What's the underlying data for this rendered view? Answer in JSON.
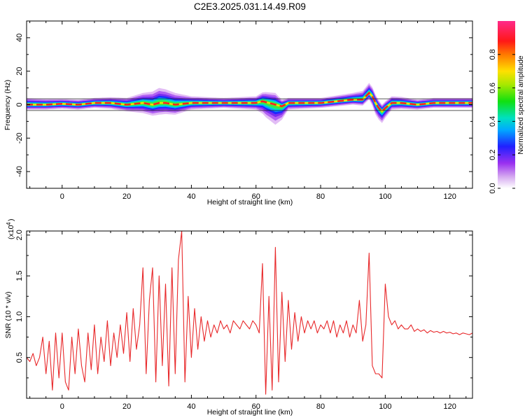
{
  "title": "C2E3.2025.031.14.49.R09",
  "chart_data": [
    {
      "type": "heatmap",
      "xlabel": "Height of straight line (km)",
      "ylabel": "Frequency (Hz)",
      "xlim": [
        -11,
        127
      ],
      "ylim": [
        -50,
        50
      ],
      "xticks": [
        0,
        20,
        40,
        60,
        80,
        100,
        120
      ],
      "xtick_labels": [
        "0",
        "20",
        "40",
        "60",
        "80",
        "100",
        "120"
      ],
      "yticks": [
        -40,
        -20,
        0,
        20,
        40
      ],
      "ytick_labels": [
        "-40",
        "-20",
        "0",
        "20",
        "40"
      ],
      "colorbar": {
        "label": "Normalized spectral amplitude",
        "range": [
          0,
          1
        ],
        "ticks": [
          0.0,
          0.2,
          0.4,
          0.6,
          0.8
        ],
        "tick_labels": [
          "0.0",
          "0.2",
          "0.4",
          "0.6",
          "0.8"
        ]
      },
      "ridge": {
        "x": [
          -11,
          -5,
          0,
          5,
          10,
          15,
          20,
          25,
          28,
          30,
          32,
          35,
          40,
          45,
          50,
          55,
          60,
          62,
          64,
          66,
          68,
          70,
          75,
          80,
          85,
          90,
          93,
          95,
          96,
          97,
          98,
          99,
          100,
          102,
          105,
          110,
          115,
          120,
          127
        ],
        "y": [
          0,
          0,
          0.5,
          0,
          1,
          1,
          0,
          1,
          0,
          1,
          1,
          0,
          1,
          1,
          1,
          1,
          1,
          2,
          1,
          0,
          -1,
          1,
          1,
          1,
          2,
          3,
          3,
          7,
          5,
          1,
          -2,
          -4,
          -2,
          1,
          1,
          0,
          1,
          1,
          1
        ]
      },
      "spread_hz": {
        "x": [
          -11,
          0,
          10,
          20,
          25,
          30,
          35,
          40,
          50,
          60,
          63,
          66,
          68,
          70,
          80,
          90,
          95,
          97,
          99,
          102,
          110,
          127
        ],
        "up": [
          4,
          3,
          3,
          4,
          6,
          9,
          7,
          4,
          3,
          4,
          6,
          7,
          4,
          3,
          3,
          4,
          6,
          5,
          4,
          4,
          3,
          3
        ],
        "down": [
          3,
          3,
          3,
          4,
          6,
          7,
          6,
          4,
          3,
          4,
          9,
          12,
          8,
          4,
          3,
          3,
          4,
          7,
          7,
          4,
          3,
          3
        ]
      }
    },
    {
      "type": "line",
      "xlabel": "Height of straight line (km)",
      "ylabel": "SNR (10 * v/v)",
      "scale_label": "(x10",
      "scale_exponent": "4",
      "xlim": [
        -11,
        127
      ],
      "ylim": [
        0,
        2.05
      ],
      "xticks": [
        0,
        20,
        40,
        60,
        80,
        100,
        120
      ],
      "xtick_labels": [
        "0",
        "20",
        "40",
        "60",
        "80",
        "100",
        "120"
      ],
      "yticks": [
        0.5,
        1.0,
        1.5,
        2.0
      ],
      "ytick_labels": [
        "0.5",
        "1.0",
        "1.5",
        "2.0"
      ],
      "color": "#e8282a",
      "x": [
        -11,
        -10,
        -9,
        -8,
        -7,
        -6,
        -5,
        -4,
        -3,
        -2,
        -1,
        0,
        1,
        2,
        3,
        4,
        5,
        6,
        7,
        8,
        9,
        10,
        11,
        12,
        13,
        14,
        15,
        16,
        17,
        18,
        19,
        20,
        21,
        22,
        23,
        24,
        25,
        26,
        27,
        28,
        29,
        30,
        31,
        32,
        33,
        34,
        35,
        36,
        37,
        38,
        39,
        40,
        41,
        42,
        43,
        44,
        45,
        46,
        47,
        48,
        49,
        50,
        51,
        52,
        53,
        54,
        55,
        56,
        57,
        58,
        59,
        60,
        61,
        62,
        63,
        64,
        65,
        66,
        67,
        68,
        69,
        70,
        71,
        72,
        73,
        74,
        75,
        76,
        77,
        78,
        79,
        80,
        81,
        82,
        83,
        84,
        85,
        86,
        87,
        88,
        89,
        90,
        91,
        92,
        93,
        94,
        95,
        96,
        97,
        98,
        99,
        100,
        101,
        102,
        103,
        104,
        105,
        106,
        107,
        108,
        109,
        110,
        111,
        112,
        113,
        114,
        115,
        116,
        117,
        118,
        119,
        120,
        121,
        122,
        123,
        124,
        125,
        126,
        127
      ],
      "y": [
        0.5,
        0.45,
        0.55,
        0.4,
        0.5,
        0.75,
        0.3,
        0.7,
        0.1,
        0.8,
        0.25,
        0.8,
        0.2,
        0.1,
        0.75,
        0.3,
        0.85,
        0.4,
        0.2,
        0.8,
        0.35,
        0.9,
        0.3,
        0.75,
        0.45,
        0.95,
        0.4,
        0.8,
        0.5,
        0.9,
        0.55,
        1.05,
        0.45,
        1.1,
        0.6,
        0.9,
        1.6,
        0.3,
        1.2,
        1.6,
        0.2,
        1.5,
        0.4,
        1.4,
        0.15,
        1.6,
        0.3,
        1.7,
        2.05,
        0.2,
        1.25,
        0.5,
        1.1,
        0.6,
        1.0,
        0.7,
        0.95,
        0.75,
        0.9,
        0.8,
        0.95,
        0.85,
        0.9,
        0.8,
        0.95,
        0.9,
        0.85,
        0.95,
        0.9,
        0.85,
        0.95,
        0.9,
        0.8,
        1.65,
        0.05,
        1.25,
        0.1,
        1.85,
        0.2,
        1.3,
        0.45,
        1.2,
        0.6,
        1.05,
        0.7,
        1.0,
        0.8,
        0.95,
        0.85,
        0.95,
        0.8,
        0.9,
        0.85,
        0.95,
        0.8,
        0.95,
        0.75,
        0.9,
        0.8,
        0.95,
        0.75,
        0.9,
        0.8,
        1.2,
        0.7,
        0.9,
        1.78,
        0.4,
        0.3,
        0.3,
        0.25,
        1.4,
        1.0,
        0.9,
        0.95,
        0.85,
        0.9,
        0.85,
        0.85,
        0.9,
        0.82,
        0.85,
        0.82,
        0.84,
        0.8,
        0.83,
        0.81,
        0.82,
        0.8,
        0.82,
        0.8,
        0.81,
        0.79,
        0.8,
        0.78,
        0.8,
        0.79,
        0.78,
        0.8
      ]
    }
  ]
}
